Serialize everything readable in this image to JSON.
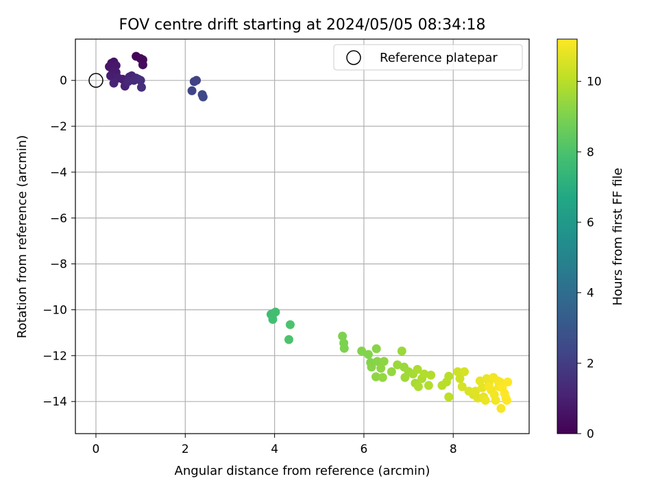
{
  "chart_data": {
    "type": "scatter",
    "title": "FOV centre drift starting at 2024/05/05 08:34:18",
    "xlabel": "Angular distance from reference (arcmin)",
    "ylabel": "Rotation from reference (arcmin)",
    "xlim": [
      -0.46,
      9.7
    ],
    "ylim": [
      -15.4,
      1.8
    ],
    "xticks": [
      0,
      2,
      4,
      6,
      8
    ],
    "yticks": [
      0,
      -2,
      -4,
      -6,
      -8,
      -10,
      -12,
      -14
    ],
    "tick_labels_x": [
      "0",
      "2",
      "4",
      "6",
      "8"
    ],
    "tick_labels_y": [
      "0",
      "−2",
      "−4",
      "−6",
      "−8",
      "−10",
      "−12",
      "−14"
    ],
    "grid": true,
    "legend": {
      "position": "top-right",
      "entries": [
        {
          "label": "Reference platepar",
          "marker": "open-circle"
        }
      ]
    },
    "reference_point": {
      "x": 0,
      "y": 0
    },
    "colorbar": {
      "label": "Hours from first FF file",
      "colormap": "viridis",
      "range": [
        0,
        11.2
      ],
      "ticks": [
        0,
        2,
        4,
        6,
        8,
        10
      ],
      "tick_labels": [
        "0",
        "2",
        "4",
        "6",
        "8",
        "10"
      ]
    },
    "points": [
      {
        "x": 0.9,
        "y": 1.05,
        "h": 0.1
      },
      {
        "x": 1.0,
        "y": 0.95,
        "h": 0.2
      },
      {
        "x": 1.05,
        "y": 0.9,
        "h": 0.25
      },
      {
        "x": 1.05,
        "y": 0.68,
        "h": 0.3
      },
      {
        "x": 0.35,
        "y": 0.75,
        "h": 0.6
      },
      {
        "x": 0.4,
        "y": 0.8,
        "h": 0.6
      },
      {
        "x": 0.3,
        "y": 0.6,
        "h": 0.7
      },
      {
        "x": 0.45,
        "y": 0.65,
        "h": 0.7
      },
      {
        "x": 0.38,
        "y": 0.4,
        "h": 0.8
      },
      {
        "x": 0.45,
        "y": 0.35,
        "h": 0.8
      },
      {
        "x": 0.33,
        "y": 0.2,
        "h": 0.9
      },
      {
        "x": 0.4,
        "y": 0.15,
        "h": 0.9
      },
      {
        "x": 0.5,
        "y": 0.1,
        "h": 1.0
      },
      {
        "x": 0.6,
        "y": 0.05,
        "h": 1.0
      },
      {
        "x": 0.4,
        "y": -0.12,
        "h": 1.1
      },
      {
        "x": 0.65,
        "y": -0.25,
        "h": 1.1
      },
      {
        "x": 0.75,
        "y": 0.15,
        "h": 1.2
      },
      {
        "x": 0.8,
        "y": 0.2,
        "h": 1.2
      },
      {
        "x": 0.72,
        "y": -0.05,
        "h": 1.3
      },
      {
        "x": 0.9,
        "y": 0.1,
        "h": 1.3
      },
      {
        "x": 0.85,
        "y": 0.0,
        "h": 1.4
      },
      {
        "x": 0.95,
        "y": 0.05,
        "h": 1.4
      },
      {
        "x": 1.0,
        "y": 0.0,
        "h": 1.5
      },
      {
        "x": 1.02,
        "y": -0.3,
        "h": 1.5
      },
      {
        "x": 2.2,
        "y": -0.05,
        "h": 2.2
      },
      {
        "x": 2.25,
        "y": 0.0,
        "h": 2.2
      },
      {
        "x": 2.15,
        "y": -0.45,
        "h": 2.3
      },
      {
        "x": 2.38,
        "y": -0.62,
        "h": 2.4
      },
      {
        "x": 2.4,
        "y": -0.72,
        "h": 2.4
      },
      {
        "x": 3.92,
        "y": -10.2,
        "h": 7.7
      },
      {
        "x": 3.98,
        "y": -10.15,
        "h": 7.7
      },
      {
        "x": 4.02,
        "y": -10.1,
        "h": 7.8
      },
      {
        "x": 3.96,
        "y": -10.42,
        "h": 7.8
      },
      {
        "x": 4.35,
        "y": -10.65,
        "h": 8.0
      },
      {
        "x": 4.32,
        "y": -11.3,
        "h": 8.0
      },
      {
        "x": 5.52,
        "y": -11.15,
        "h": 9.0
      },
      {
        "x": 5.55,
        "y": -11.45,
        "h": 9.0
      },
      {
        "x": 5.56,
        "y": -11.68,
        "h": 9.0
      },
      {
        "x": 5.95,
        "y": -11.8,
        "h": 9.1
      },
      {
        "x": 6.1,
        "y": -11.95,
        "h": 9.1
      },
      {
        "x": 6.15,
        "y": -12.3,
        "h": 9.1
      },
      {
        "x": 6.17,
        "y": -12.5,
        "h": 9.2
      },
      {
        "x": 6.28,
        "y": -11.7,
        "h": 9.2
      },
      {
        "x": 6.3,
        "y": -12.25,
        "h": 9.2
      },
      {
        "x": 6.38,
        "y": -12.55,
        "h": 9.3
      },
      {
        "x": 6.45,
        "y": -12.25,
        "h": 9.3
      },
      {
        "x": 6.27,
        "y": -12.92,
        "h": 9.3
      },
      {
        "x": 6.42,
        "y": -12.95,
        "h": 9.4
      },
      {
        "x": 6.62,
        "y": -12.7,
        "h": 9.4
      },
      {
        "x": 6.75,
        "y": -12.4,
        "h": 9.5
      },
      {
        "x": 6.85,
        "y": -11.8,
        "h": 9.5
      },
      {
        "x": 6.9,
        "y": -12.5,
        "h": 9.5
      },
      {
        "x": 6.92,
        "y": -12.95,
        "h": 9.6
      },
      {
        "x": 7.0,
        "y": -12.7,
        "h": 9.6
      },
      {
        "x": 7.1,
        "y": -12.8,
        "h": 9.7
      },
      {
        "x": 7.15,
        "y": -13.2,
        "h": 9.7
      },
      {
        "x": 7.2,
        "y": -12.6,
        "h": 9.8
      },
      {
        "x": 7.22,
        "y": -13.35,
        "h": 9.8
      },
      {
        "x": 7.3,
        "y": -13.0,
        "h": 9.8
      },
      {
        "x": 7.35,
        "y": -12.8,
        "h": 9.9
      },
      {
        "x": 7.45,
        "y": -13.3,
        "h": 9.9
      },
      {
        "x": 7.5,
        "y": -12.85,
        "h": 9.9
      },
      {
        "x": 7.75,
        "y": -13.3,
        "h": 10.0
      },
      {
        "x": 7.85,
        "y": -13.15,
        "h": 10.0
      },
      {
        "x": 7.9,
        "y": -12.9,
        "h": 10.0
      },
      {
        "x": 7.9,
        "y": -13.8,
        "h": 10.1
      },
      {
        "x": 8.1,
        "y": -12.7,
        "h": 10.4
      },
      {
        "x": 8.15,
        "y": -13.0,
        "h": 10.4
      },
      {
        "x": 8.2,
        "y": -13.35,
        "h": 10.5
      },
      {
        "x": 8.25,
        "y": -12.7,
        "h": 10.5
      },
      {
        "x": 8.35,
        "y": -13.55,
        "h": 10.6
      },
      {
        "x": 8.45,
        "y": -13.7,
        "h": 10.6
      },
      {
        "x": 8.5,
        "y": -13.55,
        "h": 10.7
      },
      {
        "x": 8.55,
        "y": -13.85,
        "h": 10.7
      },
      {
        "x": 8.6,
        "y": -13.1,
        "h": 10.8
      },
      {
        "x": 8.65,
        "y": -13.4,
        "h": 10.8
      },
      {
        "x": 8.68,
        "y": -13.8,
        "h": 10.8
      },
      {
        "x": 8.72,
        "y": -13.95,
        "h": 10.9
      },
      {
        "x": 8.75,
        "y": -13.0,
        "h": 10.9
      },
      {
        "x": 8.8,
        "y": -13.2,
        "h": 10.9
      },
      {
        "x": 8.85,
        "y": -13.5,
        "h": 11.0
      },
      {
        "x": 8.9,
        "y": -12.95,
        "h": 11.0
      },
      {
        "x": 8.92,
        "y": -13.7,
        "h": 11.0
      },
      {
        "x": 8.95,
        "y": -13.95,
        "h": 11.0
      },
      {
        "x": 9.0,
        "y": -13.1,
        "h": 11.1
      },
      {
        "x": 9.02,
        "y": -13.35,
        "h": 11.1
      },
      {
        "x": 9.05,
        "y": -13.15,
        "h": 11.1
      },
      {
        "x": 9.07,
        "y": -14.3,
        "h": 11.1
      },
      {
        "x": 9.1,
        "y": -13.4,
        "h": 11.2
      },
      {
        "x": 9.15,
        "y": -13.65,
        "h": 11.2
      },
      {
        "x": 9.18,
        "y": -13.85,
        "h": 11.2
      },
      {
        "x": 9.22,
        "y": -13.15,
        "h": 11.2
      },
      {
        "x": 9.2,
        "y": -13.95,
        "h": 11.2
      },
      {
        "x": 8.8,
        "y": -13.35,
        "h": 11.1
      }
    ]
  }
}
